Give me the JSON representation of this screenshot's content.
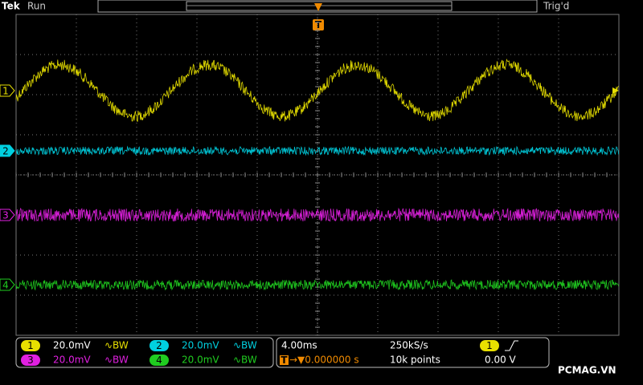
{
  "header": {
    "brand": "Tek",
    "status": "Run",
    "trigger_status": "Trig'd",
    "trigger_marker": "T"
  },
  "channels": [
    {
      "label": "1",
      "scale": "20.0mV",
      "bw": "∿BW"
    },
    {
      "label": "2",
      "scale": "20.0mV",
      "bw": "∿BW"
    },
    {
      "label": "3",
      "scale": "20.0mV",
      "bw": "∿BW"
    },
    {
      "label": "4",
      "scale": "20.0mV",
      "bw": "∿BW"
    }
  ],
  "timebase": {
    "scale": "4.00ms",
    "sample_rate": "250kS/s",
    "delay_marker": "T",
    "delay": "→▼0.000000 s",
    "record": "10k points"
  },
  "trigger": {
    "source": "1",
    "level": "0.00 V"
  },
  "watermark": "PCMAG.VN"
}
